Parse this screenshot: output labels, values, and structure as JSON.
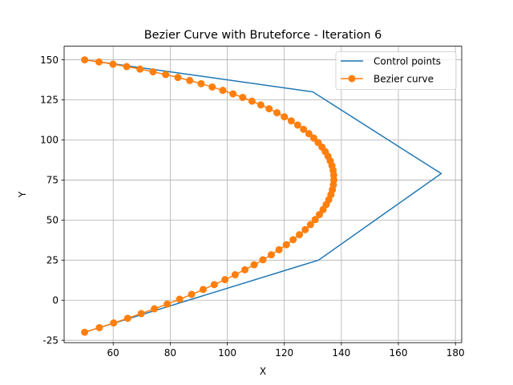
{
  "chart_data": {
    "type": "line",
    "title": "Bezier Curve with Bruteforce - Iteration 6",
    "xlabel": "X",
    "ylabel": "Y",
    "xlim": [
      42.8,
      182.2
    ],
    "ylim": [
      -26.5,
      158.5
    ],
    "xticks": [
      60,
      80,
      100,
      120,
      140,
      160,
      180
    ],
    "yticks": [
      -25,
      0,
      25,
      50,
      75,
      100,
      125,
      150
    ],
    "grid": true,
    "legend_position": "top-right",
    "series": [
      {
        "name": "Control points",
        "color": "#1f77b4",
        "marker": "none",
        "points": [
          [
            50,
            150
          ],
          [
            130,
            130
          ],
          [
            175,
            79
          ],
          [
            132,
            25
          ],
          [
            50,
            -20
          ]
        ]
      },
      {
        "name": "Bezier curve",
        "color": "#ff7f0e",
        "marker": "circle",
        "points": []
      }
    ]
  }
}
